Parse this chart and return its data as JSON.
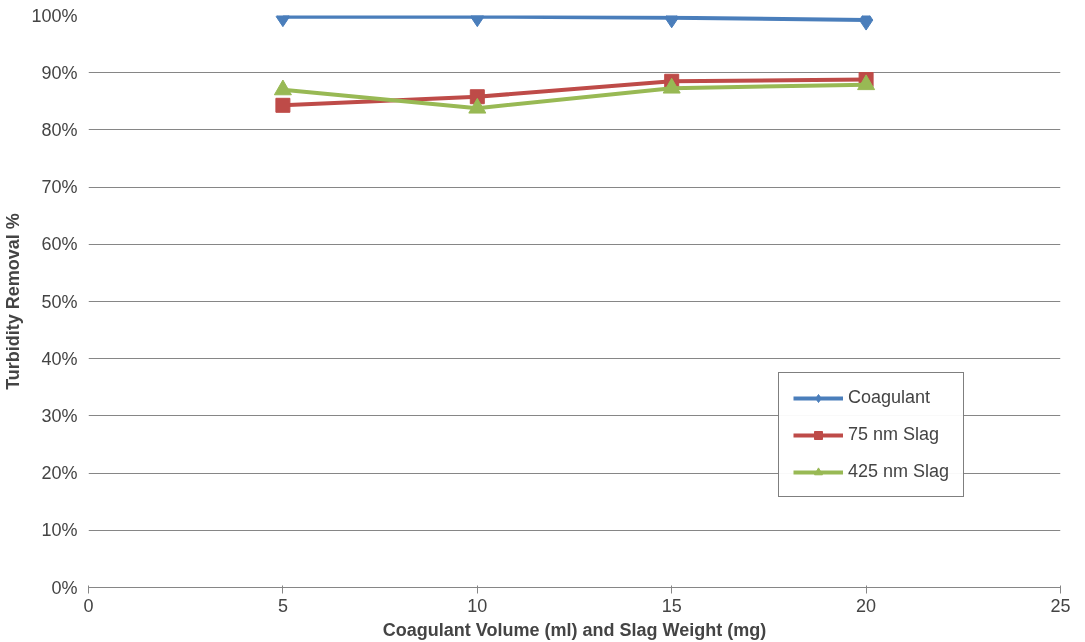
{
  "chart_data": {
    "type": "line",
    "xlabel": "Coagulant Volume (ml) and Slag Weight (mg)",
    "ylabel": "Turbidity Removal %",
    "x": [
      5,
      10,
      15,
      20
    ],
    "series": [
      {
        "name": "Coagulant",
        "color": "#4a7ebb",
        "marker": "diamond",
        "values": [
          99.8,
          99.8,
          99.6,
          99.2
        ]
      },
      {
        "name": "75 nm Slag",
        "color": "#be4b48",
        "marker": "square",
        "values": [
          84.3,
          85.8,
          88.5,
          88.8
        ]
      },
      {
        "name": "425 nm Slag",
        "color": "#98b954",
        "marker": "triangle",
        "values": [
          87.0,
          83.8,
          87.3,
          87.9
        ]
      }
    ],
    "xlim": [
      0,
      25
    ],
    "xticks": [
      0,
      5,
      10,
      15,
      20,
      25
    ],
    "ylim": [
      0,
      100
    ],
    "yticks": [
      {
        "value": 0,
        "label": "0%"
      },
      {
        "value": 10,
        "label": "10%"
      },
      {
        "value": 20,
        "label": "20%"
      },
      {
        "value": 30,
        "label": "30%"
      },
      {
        "value": 40,
        "label": "40%"
      },
      {
        "value": 50,
        "label": "50%"
      },
      {
        "value": 60,
        "label": "60%"
      },
      {
        "value": 70,
        "label": "70%"
      },
      {
        "value": 80,
        "label": "80%"
      },
      {
        "value": 90,
        "label": "90%"
      },
      {
        "value": 100,
        "label": "100%"
      }
    ],
    "grid": "y",
    "legend": "right"
  }
}
